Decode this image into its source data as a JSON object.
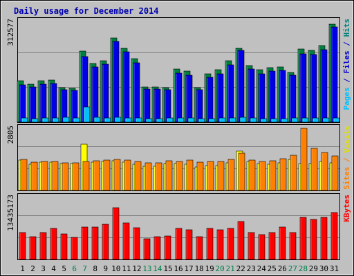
{
  "chart_data": {
    "type": "bar",
    "title": "Daily usage for December 2014",
    "categories": [
      "1",
      "2",
      "3",
      "4",
      "5",
      "6",
      "7",
      "8",
      "9",
      "10",
      "11",
      "12",
      "13",
      "14",
      "15",
      "16",
      "17",
      "18",
      "19",
      "20",
      "21",
      "22",
      "23",
      "24",
      "25",
      "26",
      "27",
      "28",
      "29",
      "30",
      "31"
    ],
    "weekend_days": [
      "6",
      "7",
      "13",
      "14",
      "20",
      "21",
      "27",
      "28"
    ],
    "panels": [
      {
        "id": "top",
        "ymax_label": "312577",
        "ylim": [
          0,
          312577
        ],
        "right_label": [
          {
            "text": "Pages",
            "color": "#00c0ff"
          },
          {
            "text": " / ",
            "color": "#0000cc"
          },
          {
            "text": "Files",
            "color": "#0000cc"
          },
          {
            "text": " / ",
            "color": "#0000cc"
          },
          {
            "text": "Hits",
            "color": "#008080"
          }
        ],
        "series": [
          {
            "name": "Hits",
            "color": "#008040",
            "values": [
              128000,
              118000,
              128000,
              130000,
              108000,
              105000,
              220000,
              183000,
              190000,
              262000,
              230000,
              198000,
              110000,
              110000,
              106000,
              165000,
              158000,
              108000,
              150000,
              162000,
              190000,
              230000,
              175000,
              162000,
              170000,
              172000,
              155000,
              228000,
              222000,
              237000,
              305000
            ]
          },
          {
            "name": "Files",
            "color": "#0000e6",
            "values": [
              116000,
              110000,
              118000,
              120000,
              100000,
              98000,
              204000,
              172000,
              180000,
              250000,
              218000,
              185000,
              102000,
              102000,
              100000,
              152000,
              146000,
              100000,
              140000,
              150000,
              178000,
              222000,
              164000,
              150000,
              158000,
              160000,
              145000,
              212000,
              210000,
              225000,
              295000
            ]
          },
          {
            "name": "Pages",
            "color": "#00c0ff",
            "values": [
              13000,
              11000,
              12000,
              12000,
              14000,
              12000,
              47000,
              14000,
              13000,
              14000,
              13000,
              12000,
              11000,
              11000,
              12000,
              12000,
              13000,
              11000,
              11000,
              12000,
              13000,
              14000,
              12000,
              11000,
              11000,
              11000,
              12000,
              12000,
              12000,
              12000,
              13000
            ]
          }
        ]
      },
      {
        "id": "middle",
        "ymax_label": "2805",
        "ylim": [
          0,
          2805
        ],
        "right_label": [
          {
            "text": "Sites",
            "color": "#ff8000"
          },
          {
            "text": " / ",
            "color": "#ff8000"
          },
          {
            "text": "Visits",
            "color": "#e0e000"
          }
        ],
        "series": [
          {
            "name": "Visits",
            "color": "#ffff00",
            "values": [
              1370,
              1190,
              1280,
              1280,
              1210,
              1220,
              2080,
              1280,
              1320,
              1350,
              1290,
              1190,
              1090,
              1090,
              1220,
              1200,
              1190,
              1060,
              1120,
              1110,
              1250,
              1780,
              1300,
              1200,
              1170,
              1240,
              1410,
              1210,
              1230,
              1310,
              1260
            ]
          },
          {
            "name": "Sites",
            "color": "#ff8000",
            "values": [
              1400,
              1270,
              1310,
              1310,
              1260,
              1240,
              1320,
              1350,
              1370,
              1390,
              1360,
              1300,
              1240,
              1260,
              1340,
              1320,
              1370,
              1270,
              1310,
              1310,
              1400,
              1690,
              1370,
              1320,
              1350,
              1440,
              1580,
              2805,
              1910,
              1720,
              1550
            ]
          }
        ]
      },
      {
        "id": "bottom",
        "ymax_label": "13435173",
        "ylim": [
          0,
          13435173
        ],
        "right_label": [
          {
            "text": "KBytes",
            "color": "#ff0000"
          }
        ],
        "series": [
          {
            "name": "KBytes",
            "color": "#ff0000",
            "values": [
              5750000,
              4950000,
              5750000,
              6750000,
              5550000,
              4800000,
              7020000,
              7020000,
              7620000,
              11230000,
              7850000,
              6840000,
              4480000,
              4880000,
              5060000,
              6690000,
              6400000,
              4870000,
              6690000,
              6370000,
              6690000,
              8160000,
              5770000,
              5440000,
              5830000,
              7050000,
              5830000,
              9180000,
              8590000,
              9120000,
              10080000
            ]
          }
        ]
      }
    ],
    "grid": true
  }
}
